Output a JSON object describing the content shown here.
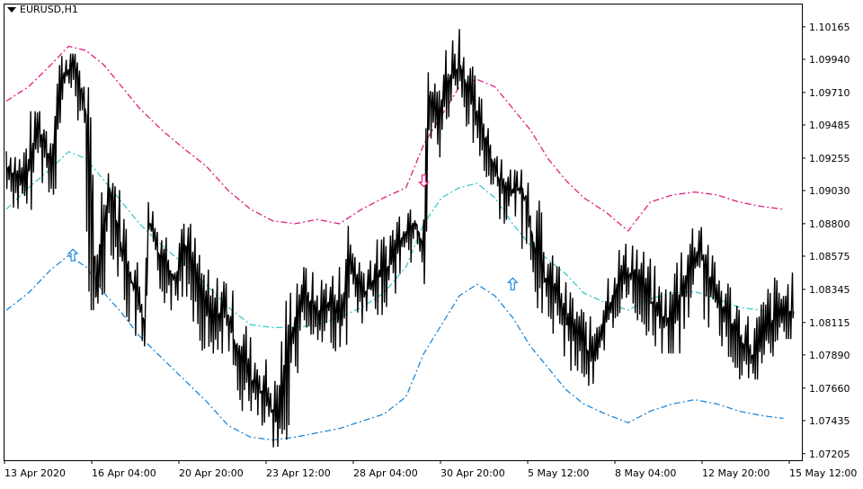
{
  "symbol_label": "EURUSD,H1",
  "colors": {
    "price": "#000000",
    "upper_band": "#e0207f",
    "middle_band": "#3cc8c8",
    "lower_band": "#1e88d8",
    "sell_arrow": "#e0207f",
    "buy_arrow": "#1e88d8",
    "frame": "#000000"
  },
  "chart_data": {
    "type": "line",
    "title": "EURUSD,H1",
    "y_ticks": [
      "1.10165",
      "1.09940",
      "1.09710",
      "1.09485",
      "1.09255",
      "1.09030",
      "1.08800",
      "1.08575",
      "1.08345",
      "1.08115",
      "1.07890",
      "1.07660",
      "1.07435",
      "1.07205"
    ],
    "ylim": [
      1.0716,
      1.1032
    ],
    "x_ticks": [
      "13 Apr 2020",
      "16 Apr 04:00",
      "20 Apr 20:00",
      "23 Apr 12:00",
      "28 Apr 04:00",
      "30 Apr 20:00",
      "5 May 12:00",
      "8 May 04:00",
      "12 May 20:00",
      "15 May 12:00"
    ],
    "x_range_bars": [
      0,
      355
    ],
    "grid": false,
    "legend": "none",
    "series": [
      {
        "style": "close",
        "x": [
          0,
          8,
          14,
          20,
          25,
          30,
          35,
          40,
          46,
          52,
          58,
          62,
          64,
          68,
          72,
          76,
          80,
          86,
          92,
          98,
          104,
          110,
          116,
          122,
          128,
          134,
          140,
          146,
          150,
          154,
          160,
          166,
          172,
          178,
          184,
          188,
          190,
          194,
          198,
          204,
          208,
          212,
          216,
          220,
          226,
          232,
          238,
          242,
          246,
          252,
          258,
          264,
          270,
          276,
          282,
          288,
          294,
          300,
          306,
          312,
          318,
          324,
          330,
          336,
          342,
          348,
          355
        ],
        "values": [
          1.0918,
          1.0905,
          1.0945,
          1.092,
          1.098,
          1.099,
          1.096,
          1.083,
          1.0905,
          1.086,
          1.083,
          1.081,
          1.088,
          1.086,
          1.085,
          1.084,
          1.0865,
          1.0835,
          1.081,
          1.082,
          1.079,
          1.077,
          1.076,
          1.074,
          1.08,
          1.083,
          1.0815,
          1.0825,
          1.081,
          1.085,
          1.083,
          1.084,
          1.085,
          1.087,
          1.088,
          1.086,
          1.0965,
          1.095,
          1.0975,
          1.099,
          1.097,
          1.095,
          1.0935,
          1.0915,
          1.09,
          1.0905,
          1.086,
          1.084,
          1.0835,
          1.081,
          1.08,
          1.0785,
          1.0815,
          1.084,
          1.0845,
          1.083,
          1.0815,
          1.081,
          1.084,
          1.086,
          1.083,
          1.0815,
          1.08,
          1.0785,
          1.0805,
          1.0815,
          1.082
        ],
        "highs": [
          1.0935,
          1.092,
          1.0958,
          1.094,
          1.099,
          1.0998,
          1.0975,
          1.092,
          1.0915,
          1.0885,
          1.0862,
          1.0845,
          1.0895,
          1.0885,
          1.0872,
          1.0868,
          1.088,
          1.086,
          1.0852,
          1.084,
          1.0828,
          1.081,
          1.079,
          1.0785,
          1.083,
          1.085,
          1.0842,
          1.085,
          1.0838,
          1.088,
          1.086,
          1.0868,
          1.0872,
          1.0885,
          1.0895,
          1.088,
          1.0985,
          1.0972,
          1.0995,
          1.1015,
          1.099,
          1.0968,
          1.0952,
          1.0935,
          1.0918,
          1.092,
          1.0915,
          1.087,
          1.0858,
          1.084,
          1.0822,
          1.0815,
          1.0838,
          1.0862,
          1.087,
          1.0858,
          1.0845,
          1.084,
          1.088,
          1.0885,
          1.0858,
          1.0845,
          1.0832,
          1.0815,
          1.0832,
          1.0855,
          1.0835
        ],
        "lows": [
          1.0898,
          1.0885,
          1.092,
          1.09,
          1.0955,
          1.097,
          1.0935,
          1.082,
          1.0875,
          1.0835,
          1.0805,
          1.0795,
          1.0855,
          1.0835,
          1.0825,
          1.0815,
          1.0838,
          1.0812,
          1.079,
          1.0795,
          1.077,
          1.075,
          1.074,
          1.0725,
          1.077,
          1.0805,
          1.0795,
          1.08,
          1.079,
          1.0822,
          1.081,
          1.0815,
          1.0825,
          1.0845,
          1.0855,
          1.0838,
          1.094,
          1.0925,
          1.095,
          1.0965,
          1.0945,
          1.093,
          1.0912,
          1.0895,
          1.088,
          1.0885,
          1.0835,
          1.0818,
          1.0812,
          1.0788,
          1.0778,
          1.0765,
          1.0795,
          1.0818,
          1.082,
          1.0808,
          1.0795,
          1.079,
          1.0815,
          1.0835,
          1.0808,
          1.0795,
          1.078,
          1.0772,
          1.0788,
          1.08,
          1.0805
        ]
      },
      {
        "style": "upper-band",
        "x": [
          0,
          10,
          20,
          28,
          36,
          44,
          52,
          60,
          70,
          80,
          90,
          100,
          110,
          120,
          130,
          140,
          150,
          160,
          170,
          180,
          188,
          196,
          204,
          212,
          220,
          228,
          236,
          244,
          252,
          260,
          270,
          280,
          290,
          300,
          310,
          320,
          330,
          340,
          350
        ],
        "values": [
          1.0965,
          1.0975,
          1.099,
          1.1003,
          1.1,
          1.099,
          1.0975,
          1.096,
          1.0945,
          1.0932,
          1.092,
          1.0903,
          1.089,
          1.0882,
          1.088,
          1.0883,
          1.088,
          1.089,
          1.0898,
          1.0905,
          1.0935,
          1.0955,
          1.0975,
          1.098,
          1.0975,
          1.096,
          1.0945,
          1.0925,
          1.091,
          1.0898,
          1.0888,
          1.0875,
          1.0895,
          1.09,
          1.0902,
          1.09,
          1.0895,
          1.0892,
          1.089
        ]
      },
      {
        "style": "middle-band",
        "x": [
          0,
          10,
          20,
          28,
          36,
          44,
          52,
          60,
          70,
          80,
          90,
          100,
          110,
          120,
          130,
          140,
          150,
          160,
          170,
          180,
          188,
          196,
          204,
          212,
          220,
          228,
          236,
          244,
          252,
          260,
          270,
          280,
          290,
          300,
          310,
          320,
          330,
          340,
          350
        ],
        "values": [
          1.089,
          1.0905,
          1.0918,
          1.093,
          1.0925,
          1.091,
          1.0895,
          1.088,
          1.0865,
          1.0852,
          1.0838,
          1.0822,
          1.081,
          1.0808,
          1.0808,
          1.081,
          1.0815,
          1.0822,
          1.0832,
          1.085,
          1.088,
          1.0898,
          1.0905,
          1.0908,
          1.0898,
          1.088,
          1.0865,
          1.0855,
          1.0845,
          1.0832,
          1.0825,
          1.082,
          1.0828,
          1.0832,
          1.0833,
          1.0828,
          1.0822,
          1.082,
          1.0818
        ]
      },
      {
        "style": "lower-band",
        "x": [
          0,
          10,
          20,
          28,
          36,
          44,
          52,
          60,
          70,
          80,
          90,
          100,
          110,
          120,
          130,
          140,
          150,
          160,
          170,
          180,
          188,
          196,
          204,
          212,
          220,
          228,
          236,
          244,
          252,
          260,
          270,
          280,
          290,
          300,
          310,
          320,
          330,
          340,
          350
        ],
        "values": [
          1.082,
          1.0832,
          1.0848,
          1.0858,
          1.085,
          1.0832,
          1.0818,
          1.0802,
          1.0787,
          1.0772,
          1.0757,
          1.074,
          1.0732,
          1.073,
          1.0732,
          1.0735,
          1.0738,
          1.0743,
          1.0748,
          1.076,
          1.079,
          1.081,
          1.083,
          1.0838,
          1.083,
          1.0815,
          1.0795,
          1.078,
          1.0765,
          1.0755,
          1.0748,
          1.0742,
          1.075,
          1.0755,
          1.0758,
          1.0755,
          1.075,
          1.0747,
          1.0745
        ]
      }
    ],
    "arrows": [
      {
        "type": "buy",
        "x": 30,
        "y": 1.0858
      },
      {
        "type": "sell",
        "x": 188,
        "y": 1.091
      },
      {
        "type": "buy",
        "x": 228,
        "y": 1.0838
      }
    ]
  }
}
